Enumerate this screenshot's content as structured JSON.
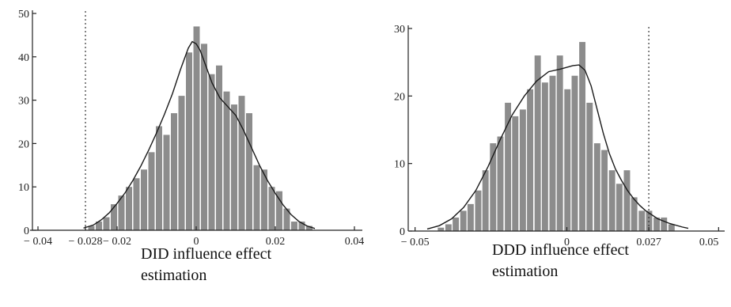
{
  "chart_data": [
    {
      "type": "bar",
      "subtype": "histogram-with-density",
      "caption_lines": [
        "DID influence effect",
        "estimation"
      ],
      "xlim": [
        -0.042,
        0.042
      ],
      "ylim": [
        0,
        50
      ],
      "x_tick_labels": [
        {
          "value": -0.04,
          "label": "− 0.04"
        },
        {
          "value": -0.028,
          "label": "− 0.028"
        },
        {
          "value": -0.02,
          "label": "− 0.02"
        },
        {
          "value": 0,
          "label": "0"
        },
        {
          "value": 0.02,
          "label": "0.02"
        },
        {
          "value": 0.04,
          "label": "0.04"
        }
      ],
      "y_ticks": [
        0,
        10,
        20,
        30,
        40,
        50
      ],
      "reference_line_x": -0.028,
      "bin_width": 0.0019,
      "bins": [
        {
          "x": -0.0265,
          "count": 1
        },
        {
          "x": -0.0246,
          "count": 2
        },
        {
          "x": -0.0227,
          "count": 3
        },
        {
          "x": -0.0208,
          "count": 6
        },
        {
          "x": -0.0189,
          "count": 8
        },
        {
          "x": -0.017,
          "count": 10
        },
        {
          "x": -0.0151,
          "count": 12
        },
        {
          "x": -0.0132,
          "count": 14
        },
        {
          "x": -0.0113,
          "count": 18
        },
        {
          "x": -0.0094,
          "count": 24
        },
        {
          "x": -0.0075,
          "count": 22
        },
        {
          "x": -0.0056,
          "count": 27
        },
        {
          "x": -0.0037,
          "count": 31
        },
        {
          "x": -0.0018,
          "count": 41
        },
        {
          "x": 0.0001,
          "count": 47
        },
        {
          "x": 0.002,
          "count": 43
        },
        {
          "x": 0.0039,
          "count": 36
        },
        {
          "x": 0.0058,
          "count": 38
        },
        {
          "x": 0.0077,
          "count": 32
        },
        {
          "x": 0.0096,
          "count": 29
        },
        {
          "x": 0.0115,
          "count": 31
        },
        {
          "x": 0.0134,
          "count": 27
        },
        {
          "x": 0.0153,
          "count": 15
        },
        {
          "x": 0.0172,
          "count": 14
        },
        {
          "x": 0.0191,
          "count": 10
        },
        {
          "x": 0.021,
          "count": 9
        },
        {
          "x": 0.0229,
          "count": 5
        },
        {
          "x": 0.0248,
          "count": 2
        },
        {
          "x": 0.0267,
          "count": 2
        },
        {
          "x": 0.0286,
          "count": 1
        }
      ],
      "density": [
        [
          -0.0285,
          0.5
        ],
        [
          -0.026,
          1.2
        ],
        [
          -0.024,
          2.4
        ],
        [
          -0.022,
          4.0
        ],
        [
          -0.02,
          6.2
        ],
        [
          -0.018,
          8.6
        ],
        [
          -0.016,
          11.5
        ],
        [
          -0.014,
          14.8
        ],
        [
          -0.012,
          18.5
        ],
        [
          -0.01,
          22.5
        ],
        [
          -0.008,
          26.8
        ],
        [
          -0.006,
          31.5
        ],
        [
          -0.004,
          37.0
        ],
        [
          -0.002,
          42.0
        ],
        [
          -0.001,
          43.5
        ],
        [
          0.0,
          43.0
        ],
        [
          0.001,
          41.5
        ],
        [
          0.002,
          39.0
        ],
        [
          0.004,
          34.0
        ],
        [
          0.006,
          30.5
        ],
        [
          0.008,
          28.5
        ],
        [
          0.01,
          26.5
        ],
        [
          0.012,
          23.0
        ],
        [
          0.014,
          19.0
        ],
        [
          0.016,
          15.0
        ],
        [
          0.018,
          11.5
        ],
        [
          0.02,
          8.5
        ],
        [
          0.022,
          5.8
        ],
        [
          0.024,
          3.6
        ],
        [
          0.026,
          2.0
        ],
        [
          0.028,
          1.0
        ],
        [
          0.03,
          0.4
        ]
      ]
    },
    {
      "type": "bar",
      "subtype": "histogram-with-density",
      "caption_lines": [
        "DDD influence effect",
        "estimation"
      ],
      "xlim": [
        -0.052,
        0.052
      ],
      "ylim": [
        0,
        30
      ],
      "x_tick_labels": [
        {
          "value": -0.05,
          "label": "− 0.05"
        },
        {
          "value": 0,
          "label": "0"
        },
        {
          "value": 0.027,
          "label": "0.027"
        },
        {
          "value": 0.05,
          "label": "0.05"
        }
      ],
      "y_ticks": [
        0,
        10,
        20,
        30
      ],
      "reference_line_x": 0.027,
      "bin_width": 0.00245,
      "bins": [
        {
          "x": -0.0415,
          "count": 0.5
        },
        {
          "x": -0.039,
          "count": 1
        },
        {
          "x": -0.0366,
          "count": 2
        },
        {
          "x": -0.0341,
          "count": 3
        },
        {
          "x": -0.0317,
          "count": 4
        },
        {
          "x": -0.0292,
          "count": 6
        },
        {
          "x": -0.0268,
          "count": 9
        },
        {
          "x": -0.0243,
          "count": 13
        },
        {
          "x": -0.0219,
          "count": 14
        },
        {
          "x": -0.0194,
          "count": 19
        },
        {
          "x": -0.017,
          "count": 17
        },
        {
          "x": -0.0145,
          "count": 18
        },
        {
          "x": -0.0121,
          "count": 21
        },
        {
          "x": -0.0096,
          "count": 26
        },
        {
          "x": -0.0072,
          "count": 22
        },
        {
          "x": -0.0047,
          "count": 23
        },
        {
          "x": -0.0023,
          "count": 26
        },
        {
          "x": 0.0002,
          "count": 21
        },
        {
          "x": 0.0026,
          "count": 23
        },
        {
          "x": 0.0051,
          "count": 28
        },
        {
          "x": 0.0075,
          "count": 19
        },
        {
          "x": 0.01,
          "count": 13
        },
        {
          "x": 0.0124,
          "count": 12
        },
        {
          "x": 0.0149,
          "count": 9
        },
        {
          "x": 0.0173,
          "count": 7
        },
        {
          "x": 0.0198,
          "count": 9
        },
        {
          "x": 0.0222,
          "count": 5
        },
        {
          "x": 0.0247,
          "count": 3
        },
        {
          "x": 0.0271,
          "count": 3
        },
        {
          "x": 0.0296,
          "count": 2
        },
        {
          "x": 0.032,
          "count": 2
        },
        {
          "x": 0.0345,
          "count": 1
        }
      ],
      "density": [
        [
          -0.046,
          0.3
        ],
        [
          -0.042,
          0.8
        ],
        [
          -0.038,
          1.8
        ],
        [
          -0.034,
          3.5
        ],
        [
          -0.03,
          6.0
        ],
        [
          -0.026,
          9.5
        ],
        [
          -0.022,
          13.5
        ],
        [
          -0.018,
          17.2
        ],
        [
          -0.014,
          20.0
        ],
        [
          -0.01,
          22.2
        ],
        [
          -0.006,
          23.6
        ],
        [
          -0.002,
          24.0
        ],
        [
          0.002,
          24.5
        ],
        [
          0.004,
          24.6
        ],
        [
          0.006,
          23.8
        ],
        [
          0.008,
          21.5
        ],
        [
          0.01,
          18.0
        ],
        [
          0.012,
          14.5
        ],
        [
          0.014,
          11.5
        ],
        [
          0.016,
          9.2
        ],
        [
          0.018,
          7.5
        ],
        [
          0.02,
          6.0
        ],
        [
          0.022,
          4.8
        ],
        [
          0.024,
          3.8
        ],
        [
          0.026,
          3.0
        ],
        [
          0.03,
          1.8
        ],
        [
          0.034,
          1.1
        ],
        [
          0.038,
          0.6
        ],
        [
          0.04,
          0.4
        ]
      ]
    }
  ]
}
